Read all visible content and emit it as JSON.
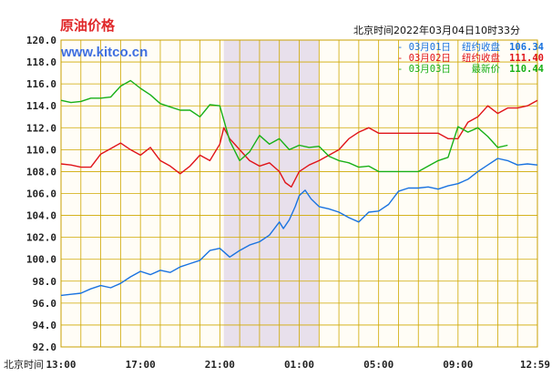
{
  "chart_data": {
    "type": "line",
    "title": "原油价格",
    "watermark": "www.kitco.cn",
    "timestamp": "北京时间2022年03月04日10时33分",
    "xlabel": "北京时间",
    "ylabel": "",
    "ylim": [
      92.0,
      120.0
    ],
    "xlim": [
      0,
      24
    ],
    "yticks": [
      "92.0",
      "94.0",
      "96.0",
      "98.0",
      "100.0",
      "102.0",
      "104.0",
      "106.0",
      "108.0",
      "110.0",
      "112.0",
      "114.0",
      "116.0",
      "118.0",
      "120.0"
    ],
    "xticks": [
      {
        "x": 0,
        "label": "13:00"
      },
      {
        "x": 4,
        "label": "17:00"
      },
      {
        "x": 8,
        "label": "21:00"
      },
      {
        "x": 12,
        "label": "01:00"
      },
      {
        "x": 16,
        "label": "05:00"
      },
      {
        "x": 20,
        "label": "09:00"
      },
      {
        "x": 24,
        "label": "12:59"
      }
    ],
    "shaded_range": [
      8.2,
      13.0
    ],
    "grid": true,
    "legend_position": "top-right",
    "series": [
      {
        "name": "03月01日",
        "label": "纽约收盘",
        "value": "106.34",
        "color": "#1a73e0",
        "x": [
          0,
          0.5,
          1,
          1.5,
          2,
          2.5,
          3,
          3.5,
          4,
          4.5,
          5,
          5.5,
          6,
          6.5,
          7,
          7.5,
          8,
          8.5,
          9,
          9.5,
          10,
          10.5,
          11,
          11.2,
          11.5,
          11.8,
          12,
          12.3,
          12.6,
          13,
          13.5,
          14,
          14.5,
          15,
          15.5,
          16,
          16.5,
          17,
          17.5,
          18,
          18.5,
          19,
          19.5,
          20,
          20.5,
          21,
          21.5,
          22,
          22.5,
          23,
          23.5,
          24
        ],
        "y": [
          96.7,
          96.8,
          96.9,
          97.3,
          97.6,
          97.4,
          97.8,
          98.4,
          98.9,
          98.6,
          99.0,
          98.8,
          99.3,
          99.6,
          99.9,
          100.8,
          101.0,
          100.2,
          100.8,
          101.3,
          101.6,
          102.2,
          103.4,
          102.8,
          103.6,
          104.8,
          105.8,
          106.3,
          105.5,
          104.8,
          104.6,
          104.3,
          103.8,
          103.4,
          104.3,
          104.4,
          105.0,
          106.2,
          106.5,
          106.5,
          106.6,
          106.4,
          106.7,
          106.9,
          107.3,
          108.0,
          108.6,
          109.2,
          109.0,
          108.6,
          108.7,
          108.6
        ]
      },
      {
        "name": "03月02日",
        "label": "纽约收盘",
        "value": "111.40",
        "color": "#e0141a",
        "x": [
          0,
          0.5,
          1,
          1.5,
          2,
          2.5,
          3,
          3.5,
          4,
          4.5,
          5,
          5.5,
          6,
          6.5,
          7,
          7.5,
          8,
          8.2,
          8.5,
          9,
          9.5,
          10,
          10.5,
          11,
          11.3,
          11.6,
          12,
          12.5,
          13,
          13.5,
          14,
          14.5,
          15,
          15.5,
          16,
          16.5,
          17,
          17.5,
          18,
          18.5,
          19,
          19.5,
          20,
          20.5,
          21,
          21.5,
          22,
          22.5,
          23,
          23.5,
          24
        ],
        "y": [
          108.7,
          108.6,
          108.4,
          108.4,
          109.6,
          110.1,
          110.6,
          110.0,
          109.5,
          110.2,
          109.0,
          108.5,
          107.8,
          108.5,
          109.5,
          109.0,
          110.5,
          112.0,
          111.0,
          110.0,
          109.0,
          108.5,
          108.8,
          108.0,
          107.0,
          106.6,
          108.0,
          108.6,
          109.0,
          109.5,
          110.0,
          111.0,
          111.6,
          112.0,
          111.5,
          111.5,
          111.5,
          111.5,
          111.5,
          111.5,
          111.5,
          111.0,
          111.0,
          112.5,
          113.0,
          114.0,
          113.3,
          113.8,
          113.8,
          114.0,
          114.5
        ]
      },
      {
        "name": "03月03日",
        "label": "最新价",
        "value": "110.44",
        "color": "#18b018",
        "x": [
          0,
          0.5,
          1,
          1.5,
          2,
          2.5,
          3,
          3.5,
          4,
          4.5,
          5,
          5.5,
          6,
          6.5,
          7,
          7.5,
          8,
          8.5,
          9,
          9.5,
          10,
          10.5,
          11,
          11.5,
          12,
          12.5,
          13,
          13.5,
          14,
          14.5,
          15,
          15.5,
          16,
          16.5,
          17,
          17.5,
          18,
          18.5,
          19,
          19.5,
          20,
          20.5,
          21,
          21.5,
          22,
          22.5
        ],
        "y": [
          114.5,
          114.3,
          114.4,
          114.7,
          114.7,
          114.8,
          115.8,
          116.3,
          115.6,
          115.0,
          114.2,
          113.9,
          113.6,
          113.6,
          113.0,
          114.1,
          114.0,
          110.8,
          109.0,
          109.8,
          111.3,
          110.5,
          111.0,
          110.0,
          110.4,
          110.2,
          110.3,
          109.4,
          109.0,
          108.8,
          108.4,
          108.5,
          108.0,
          108.0,
          108.0,
          108.0,
          108.0,
          108.5,
          109.0,
          109.3,
          112.1,
          111.6,
          112.0,
          111.2,
          110.2,
          110.4
        ]
      }
    ]
  }
}
